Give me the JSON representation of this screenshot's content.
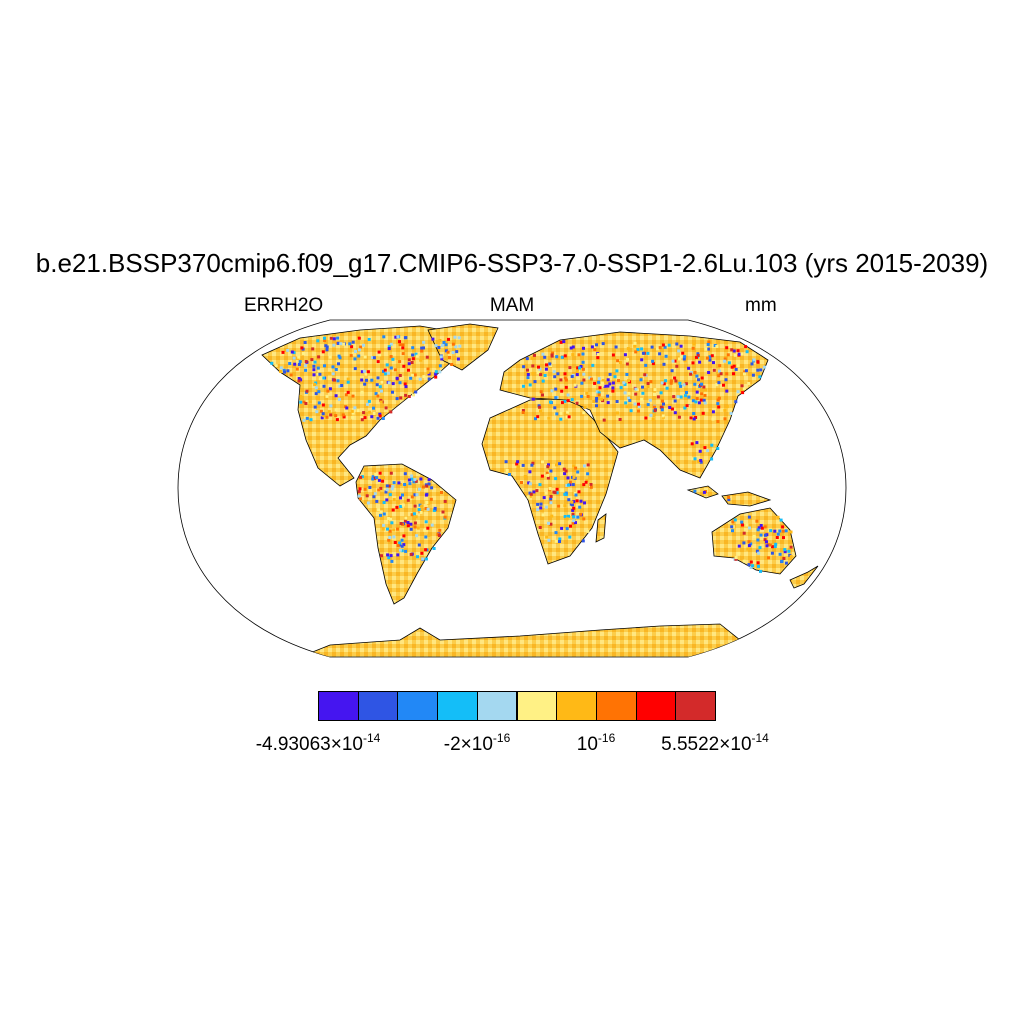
{
  "title": "b.e21.BSSP370cmip6.f09_g17.CMIP6-SSP3-7.0-SSP1-2.6Lu.103 (yrs 2015-2039)",
  "left_label": "ERRH2O",
  "center_label": "MAM",
  "right_label": "mm",
  "colorbar": {
    "colors": [
      "#4515f0",
      "#2f55e4",
      "#2288f6",
      "#14bef8",
      "#a4d8f0",
      "#fff185",
      "#ffb916",
      "#ff7304",
      "#ff0000",
      "#d32a2a"
    ],
    "labels": [
      {
        "mantissa": "-4.93063",
        "exponent": "-14",
        "has_times": true
      },
      {
        "mantissa": "-2",
        "exponent": "-16",
        "has_times": true
      },
      {
        "mantissa": "",
        "exponent": "-16",
        "has_times": false
      },
      {
        "mantissa": "5.5522",
        "exponent": "-14",
        "has_times": true
      }
    ]
  }
}
